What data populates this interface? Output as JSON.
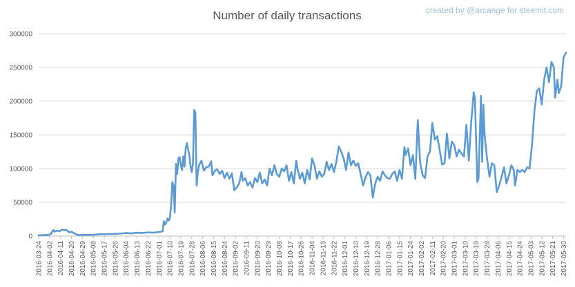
{
  "chart_data": {
    "type": "line",
    "title": "Number of daily transactions",
    "credit": "created by @arcange for steemit.com",
    "xlabel": "",
    "ylabel": "",
    "ylim": [
      0,
      300000
    ],
    "y_ticks": [
      0,
      50000,
      100000,
      150000,
      200000,
      250000,
      300000
    ],
    "y_tick_labels": [
      "0",
      "50000",
      "100000",
      "150000",
      "200000",
      "250000",
      "300000"
    ],
    "x_start": "2016-03-24",
    "x_end": "2017-06-01",
    "x_tick_labels": [
      "2016-03-24",
      "2016-04-02",
      "2016-04-11",
      "2016-04-20",
      "2016-04-29",
      "2016-05-08",
      "2016-05-17",
      "2016-05-26",
      "2016-06-04",
      "2016-06-13",
      "2016-06-22",
      "2016-07-01",
      "2016-07-10",
      "2016-07-19",
      "2016-07-28",
      "2016-08-06",
      "2016-08-15",
      "2016-08-24",
      "2016-09-02",
      "2016-09-11",
      "2016-09-20",
      "2016-09-29",
      "2016-10-08",
      "2016-10-17",
      "2016-10-26",
      "2016-11-04",
      "2016-11-13",
      "2016-11-22",
      "2016-12-01",
      "2016-12-10",
      "2016-12-19",
      "2016-12-28",
      "2017-01-06",
      "2017-01-15",
      "2017-01-24",
      "2017-02-02",
      "2017-02-11",
      "2017-02-20",
      "2017-03-01",
      "2017-03-10",
      "2017-03-19",
      "2017-03-28",
      "2017-04-06",
      "2017-04-15",
      "2017-04-24",
      "2017-05-03",
      "2017-05-12",
      "2017-05-21",
      "2017-05-30"
    ],
    "grid": true,
    "legend": "none",
    "series_color": "#5b9bd5",
    "series": [
      {
        "points": [
          [
            "2016-03-24",
            1000
          ],
          [
            "2016-03-28",
            1500
          ],
          [
            "2016-04-01",
            1800
          ],
          [
            "2016-04-03",
            3000
          ],
          [
            "2016-04-05",
            9000
          ],
          [
            "2016-04-06",
            6500
          ],
          [
            "2016-04-08",
            8000
          ],
          [
            "2016-04-10",
            7000
          ],
          [
            "2016-04-12",
            9500
          ],
          [
            "2016-04-14",
            8800
          ],
          [
            "2016-04-16",
            9000
          ],
          [
            "2016-04-18",
            5500
          ],
          [
            "2016-04-20",
            6500
          ],
          [
            "2016-04-22",
            4500
          ],
          [
            "2016-04-24",
            2500
          ],
          [
            "2016-04-26",
            1500
          ],
          [
            "2016-04-29",
            1800
          ],
          [
            "2016-05-03",
            1800
          ],
          [
            "2016-05-08",
            2000
          ],
          [
            "2016-05-12",
            2500
          ],
          [
            "2016-05-15",
            3000
          ],
          [
            "2016-05-17",
            2500
          ],
          [
            "2016-05-20",
            3000
          ],
          [
            "2016-05-24",
            3000
          ],
          [
            "2016-05-28",
            3500
          ],
          [
            "2016-06-01",
            4000
          ],
          [
            "2016-06-04",
            4500
          ],
          [
            "2016-06-08",
            4000
          ],
          [
            "2016-06-13",
            5000
          ],
          [
            "2016-06-17",
            4500
          ],
          [
            "2016-06-22",
            5500
          ],
          [
            "2016-06-26",
            5000
          ],
          [
            "2016-07-01",
            6000
          ],
          [
            "2016-07-04",
            7000
          ],
          [
            "2016-07-05",
            22000
          ],
          [
            "2016-07-06",
            17000
          ],
          [
            "2016-07-07",
            20000
          ],
          [
            "2016-07-08",
            26000
          ],
          [
            "2016-07-09",
            23000
          ],
          [
            "2016-07-10",
            27000
          ],
          [
            "2016-07-11",
            45000
          ],
          [
            "2016-07-12",
            80000
          ],
          [
            "2016-07-13",
            75000
          ],
          [
            "2016-07-14",
            35000
          ],
          [
            "2016-07-15",
            107000
          ],
          [
            "2016-07-16",
            92000
          ],
          [
            "2016-07-17",
            115000
          ],
          [
            "2016-07-18",
            117000
          ],
          [
            "2016-07-19",
            105000
          ],
          [
            "2016-07-20",
            98000
          ],
          [
            "2016-07-21",
            118000
          ],
          [
            "2016-07-22",
            103000
          ],
          [
            "2016-07-23",
            130000
          ],
          [
            "2016-07-24",
            138000
          ],
          [
            "2016-07-25",
            128000
          ],
          [
            "2016-07-26",
            120000
          ],
          [
            "2016-07-27",
            103000
          ],
          [
            "2016-07-28",
            95000
          ],
          [
            "2016-07-29",
            108000
          ],
          [
            "2016-07-30",
            187000
          ],
          [
            "2016-07-31",
            183000
          ],
          [
            "2016-08-01",
            75000
          ],
          [
            "2016-08-02",
            95000
          ],
          [
            "2016-08-03",
            105000
          ],
          [
            "2016-08-05",
            112000
          ],
          [
            "2016-08-07",
            97000
          ],
          [
            "2016-08-09",
            102000
          ],
          [
            "2016-08-11",
            103000
          ],
          [
            "2016-08-13",
            111000
          ],
          [
            "2016-08-14",
            90000
          ],
          [
            "2016-08-16",
            97000
          ],
          [
            "2016-08-18",
            99000
          ],
          [
            "2016-08-20",
            92000
          ],
          [
            "2016-08-22",
            97000
          ],
          [
            "2016-08-24",
            86000
          ],
          [
            "2016-08-26",
            94000
          ],
          [
            "2016-08-28",
            85000
          ],
          [
            "2016-08-30",
            93000
          ],
          [
            "2016-09-01",
            68000
          ],
          [
            "2016-09-03",
            72000
          ],
          [
            "2016-09-05",
            78000
          ],
          [
            "2016-09-07",
            95000
          ],
          [
            "2016-09-08",
            82000
          ],
          [
            "2016-09-10",
            86000
          ],
          [
            "2016-09-12",
            75000
          ],
          [
            "2016-09-14",
            80000
          ],
          [
            "2016-09-16",
            72000
          ],
          [
            "2016-09-18",
            86000
          ],
          [
            "2016-09-20",
            80000
          ],
          [
            "2016-09-22",
            94000
          ],
          [
            "2016-09-24",
            78000
          ],
          [
            "2016-09-26",
            84000
          ],
          [
            "2016-09-28",
            75000
          ],
          [
            "2016-09-30",
            100000
          ],
          [
            "2016-10-02",
            90000
          ],
          [
            "2016-10-04",
            105000
          ],
          [
            "2016-10-06",
            92000
          ],
          [
            "2016-10-08",
            88000
          ],
          [
            "2016-10-10",
            100000
          ],
          [
            "2016-10-12",
            96000
          ],
          [
            "2016-10-14",
            105000
          ],
          [
            "2016-10-16",
            82000
          ],
          [
            "2016-10-18",
            95000
          ],
          [
            "2016-10-20",
            78000
          ],
          [
            "2016-10-22",
            112000
          ],
          [
            "2016-10-23",
            100000
          ],
          [
            "2016-10-25",
            85000
          ],
          [
            "2016-10-27",
            94000
          ],
          [
            "2016-10-29",
            78000
          ],
          [
            "2016-10-31",
            98000
          ],
          [
            "2016-11-02",
            84000
          ],
          [
            "2016-11-04",
            115000
          ],
          [
            "2016-11-06",
            105000
          ],
          [
            "2016-11-08",
            85000
          ],
          [
            "2016-11-10",
            96000
          ],
          [
            "2016-11-12",
            88000
          ],
          [
            "2016-11-14",
            92000
          ],
          [
            "2016-11-16",
            110000
          ],
          [
            "2016-11-18",
            98000
          ],
          [
            "2016-11-20",
            107000
          ],
          [
            "2016-11-22",
            95000
          ],
          [
            "2016-11-24",
            110000
          ],
          [
            "2016-11-26",
            133000
          ],
          [
            "2016-11-28",
            125000
          ],
          [
            "2016-11-30",
            115000
          ],
          [
            "2016-12-02",
            98000
          ],
          [
            "2016-12-04",
            124000
          ],
          [
            "2016-12-06",
            105000
          ],
          [
            "2016-12-08",
            112000
          ],
          [
            "2016-12-10",
            104000
          ],
          [
            "2016-12-12",
            108000
          ],
          [
            "2016-12-14",
            92000
          ],
          [
            "2016-12-16",
            75000
          ],
          [
            "2016-12-18",
            87000
          ],
          [
            "2016-12-20",
            95000
          ],
          [
            "2016-12-22",
            90000
          ],
          [
            "2016-12-24",
            57000
          ],
          [
            "2016-12-26",
            78000
          ],
          [
            "2016-12-28",
            88000
          ],
          [
            "2016-12-30",
            82000
          ],
          [
            "2017-01-01",
            96000
          ],
          [
            "2017-01-03",
            90000
          ],
          [
            "2017-01-05",
            86000
          ],
          [
            "2017-01-07",
            85000
          ],
          [
            "2017-01-09",
            92000
          ],
          [
            "2017-01-11",
            96000
          ],
          [
            "2017-01-13",
            82000
          ],
          [
            "2017-01-15",
            98000
          ],
          [
            "2017-01-17",
            85000
          ],
          [
            "2017-01-19",
            132000
          ],
          [
            "2017-01-20",
            120000
          ],
          [
            "2017-01-22",
            130000
          ],
          [
            "2017-01-24",
            105000
          ],
          [
            "2017-01-26",
            120000
          ],
          [
            "2017-01-28",
            85000
          ],
          [
            "2017-01-30",
            172000
          ],
          [
            "2017-02-01",
            108000
          ],
          [
            "2017-02-03",
            90000
          ],
          [
            "2017-02-05",
            86000
          ],
          [
            "2017-02-07",
            118000
          ],
          [
            "2017-02-09",
            125000
          ],
          [
            "2017-02-11",
            168000
          ],
          [
            "2017-02-13",
            143000
          ],
          [
            "2017-02-15",
            148000
          ],
          [
            "2017-02-17",
            128000
          ],
          [
            "2017-02-19",
            106000
          ],
          [
            "2017-02-21",
            108000
          ],
          [
            "2017-02-23",
            152000
          ],
          [
            "2017-02-25",
            115000
          ],
          [
            "2017-02-27",
            140000
          ],
          [
            "2017-03-01",
            135000
          ],
          [
            "2017-03-03",
            118000
          ],
          [
            "2017-03-05",
            128000
          ],
          [
            "2017-03-07",
            122000
          ],
          [
            "2017-03-09",
            118000
          ],
          [
            "2017-03-11",
            165000
          ],
          [
            "2017-03-13",
            112000
          ],
          [
            "2017-03-15",
            170000
          ],
          [
            "2017-03-16",
            190000
          ],
          [
            "2017-03-17",
            213000
          ],
          [
            "2017-03-18",
            205000
          ],
          [
            "2017-03-20",
            80000
          ],
          [
            "2017-03-21",
            85000
          ],
          [
            "2017-03-23",
            208000
          ],
          [
            "2017-03-24",
            110000
          ],
          [
            "2017-03-25",
            195000
          ],
          [
            "2017-03-26",
            150000
          ],
          [
            "2017-03-28",
            115000
          ],
          [
            "2017-03-30",
            88000
          ],
          [
            "2017-04-01",
            108000
          ],
          [
            "2017-04-03",
            105000
          ],
          [
            "2017-04-05",
            65000
          ],
          [
            "2017-04-07",
            75000
          ],
          [
            "2017-04-09",
            88000
          ],
          [
            "2017-04-11",
            102000
          ],
          [
            "2017-04-13",
            78000
          ],
          [
            "2017-04-15",
            90000
          ],
          [
            "2017-04-17",
            105000
          ],
          [
            "2017-04-19",
            98000
          ],
          [
            "2017-04-20",
            75000
          ],
          [
            "2017-04-22",
            98000
          ],
          [
            "2017-04-24",
            95000
          ],
          [
            "2017-04-26",
            98000
          ],
          [
            "2017-04-28",
            95000
          ],
          [
            "2017-04-30",
            102000
          ],
          [
            "2017-05-02",
            100000
          ],
          [
            "2017-05-04",
            135000
          ],
          [
            "2017-05-06",
            185000
          ],
          [
            "2017-05-08",
            215000
          ],
          [
            "2017-05-10",
            219000
          ],
          [
            "2017-05-12",
            195000
          ],
          [
            "2017-05-14",
            232000
          ],
          [
            "2017-05-16",
            250000
          ],
          [
            "2017-05-18",
            228000
          ],
          [
            "2017-05-20",
            258000
          ],
          [
            "2017-05-22",
            250000
          ],
          [
            "2017-05-23",
            205000
          ],
          [
            "2017-05-25",
            232000
          ],
          [
            "2017-05-26",
            212000
          ],
          [
            "2017-05-28",
            222000
          ],
          [
            "2017-05-29",
            245000
          ],
          [
            "2017-05-30",
            265000
          ],
          [
            "2017-06-01",
            272000
          ]
        ]
      }
    ]
  }
}
